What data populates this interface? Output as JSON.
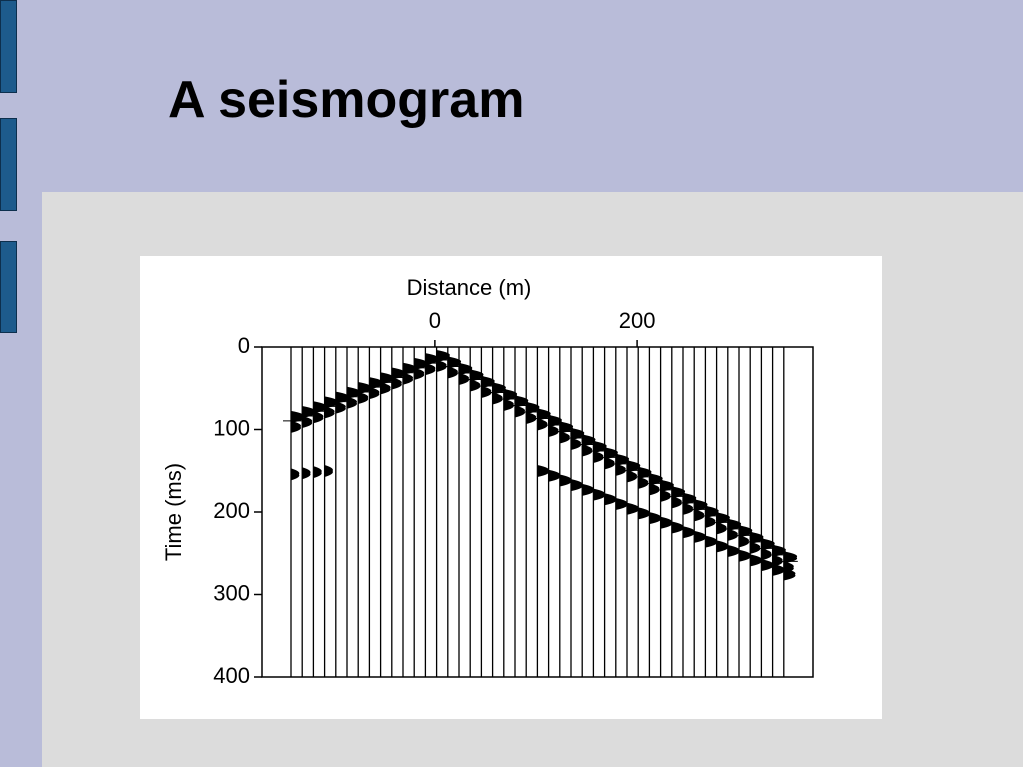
{
  "slide": {
    "title": "A seismogram"
  },
  "figure": {
    "x_label": "Distance (m)",
    "y_label": "Time (ms)",
    "xlim": [
      -171,
      374
    ],
    "xticks": [
      0,
      200
    ],
    "ylim": [
      0,
      400
    ],
    "yticks": [
      0,
      100,
      200,
      300,
      400
    ]
  }
}
